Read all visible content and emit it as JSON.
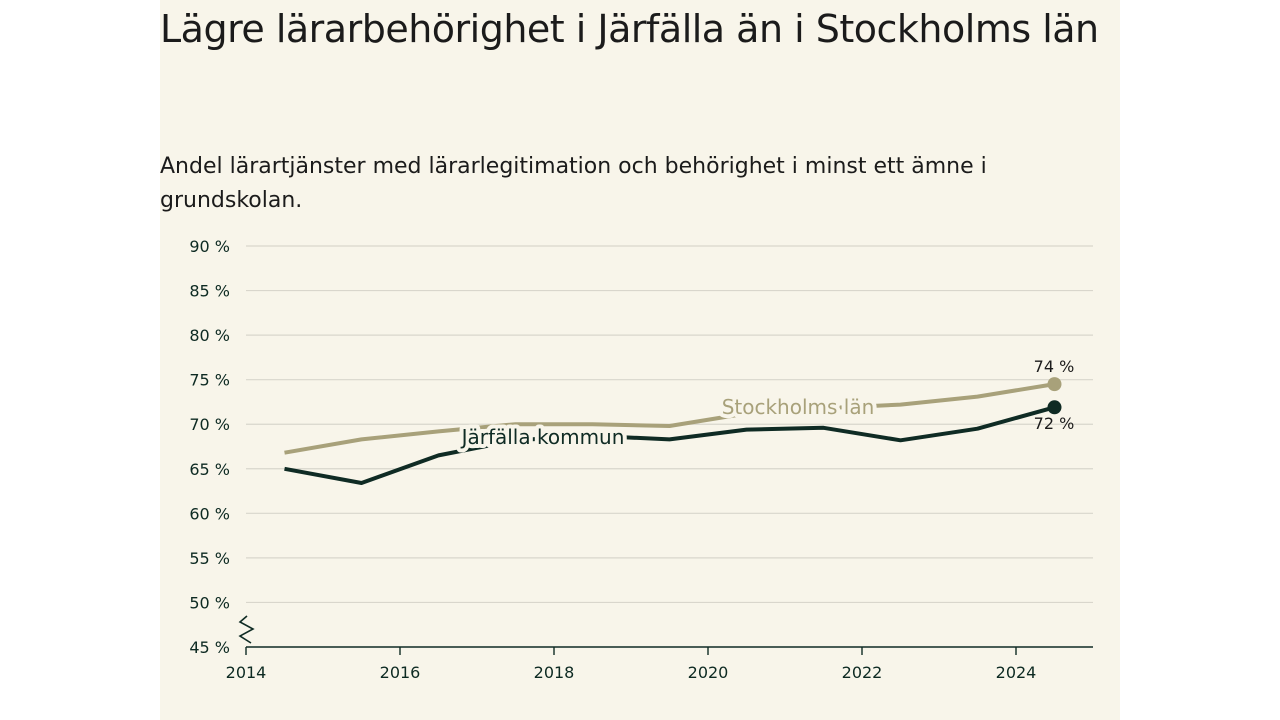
{
  "chart_data": {
    "type": "line",
    "title": "Lägre lärarbehörighet i Järfälla än i Stockholms län",
    "subtitle": "Andel lärartjänster med lärarlegitimation och behörighet i minst ett ämne i grundskolan.",
    "xlabel": "",
    "ylabel": "",
    "x": [
      2014.5,
      2015.5,
      2016.5,
      2017.5,
      2018.5,
      2019.5,
      2020.5,
      2021.5,
      2022.5,
      2023.5,
      2024.5
    ],
    "xlim": [
      2014,
      2025
    ],
    "x_ticks": [
      2014,
      2016,
      2018,
      2020,
      2022,
      2024
    ],
    "x_tick_labels": [
      "2014",
      "2016",
      "2018",
      "2020",
      "2022",
      "2024"
    ],
    "ylim": [
      45,
      90
    ],
    "y_ticks": [
      45,
      50,
      55,
      60,
      65,
      70,
      75,
      80,
      85,
      90
    ],
    "y_tick_labels": [
      "45 %",
      "50 %",
      "55 %",
      "60 %",
      "65 %",
      "70 %",
      "75 %",
      "80 %",
      "85 %",
      "90 %"
    ],
    "grid": true,
    "axis_break": true,
    "series": [
      {
        "name": "Stockholms län",
        "color": "#a8a17a",
        "values": [
          66.8,
          68.3,
          69.2,
          70.0,
          70.0,
          69.8,
          71.2,
          71.8,
          72.2,
          73.1,
          74.5
        ],
        "end_label": "74 %"
      },
      {
        "name": "Järfälla kommun",
        "color": "#0f2b24",
        "values": [
          65.0,
          63.4,
          66.5,
          68.2,
          68.7,
          68.3,
          69.4,
          69.6,
          68.2,
          69.5,
          71.9
        ],
        "end_label": "72 %"
      }
    ]
  }
}
